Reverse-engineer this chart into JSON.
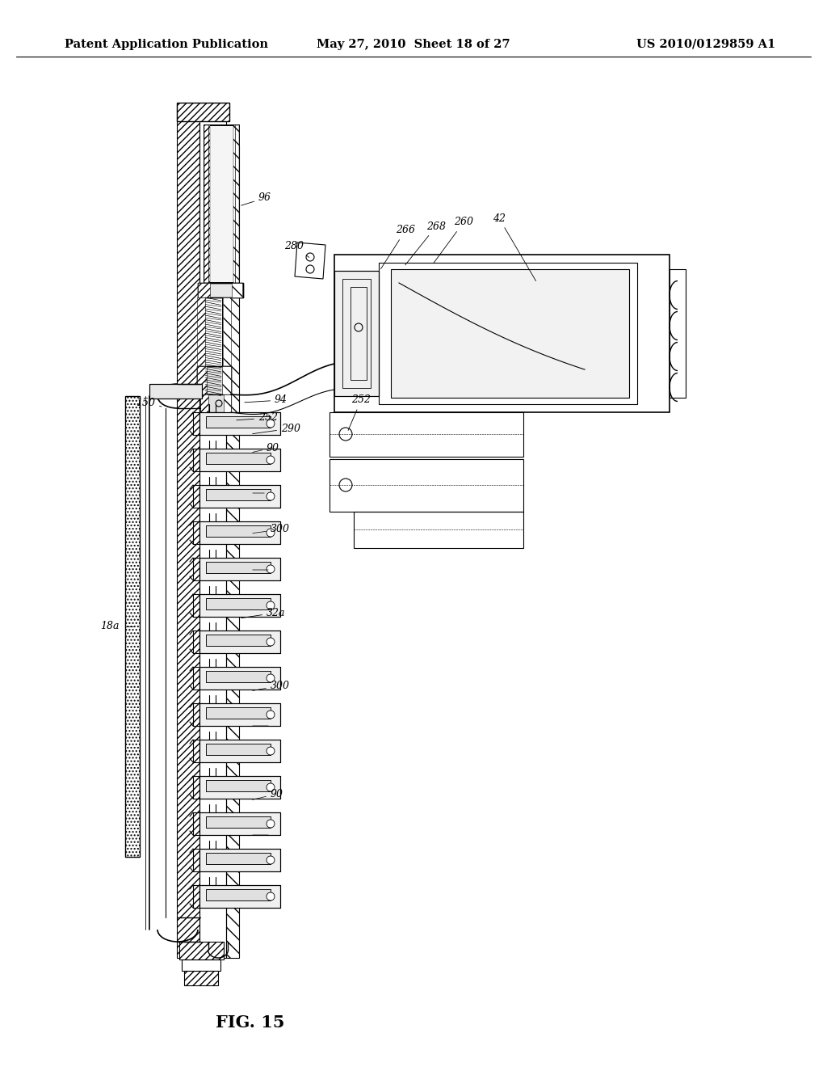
{
  "background_color": "#ffffff",
  "header_left": "Patent Application Publication",
  "header_center": "May 27, 2010  Sheet 18 of 27",
  "header_right": "US 2010/0129859 A1",
  "figure_label": "FIG. 15",
  "header_fontsize": 10.5,
  "figure_label_fontsize": 15
}
